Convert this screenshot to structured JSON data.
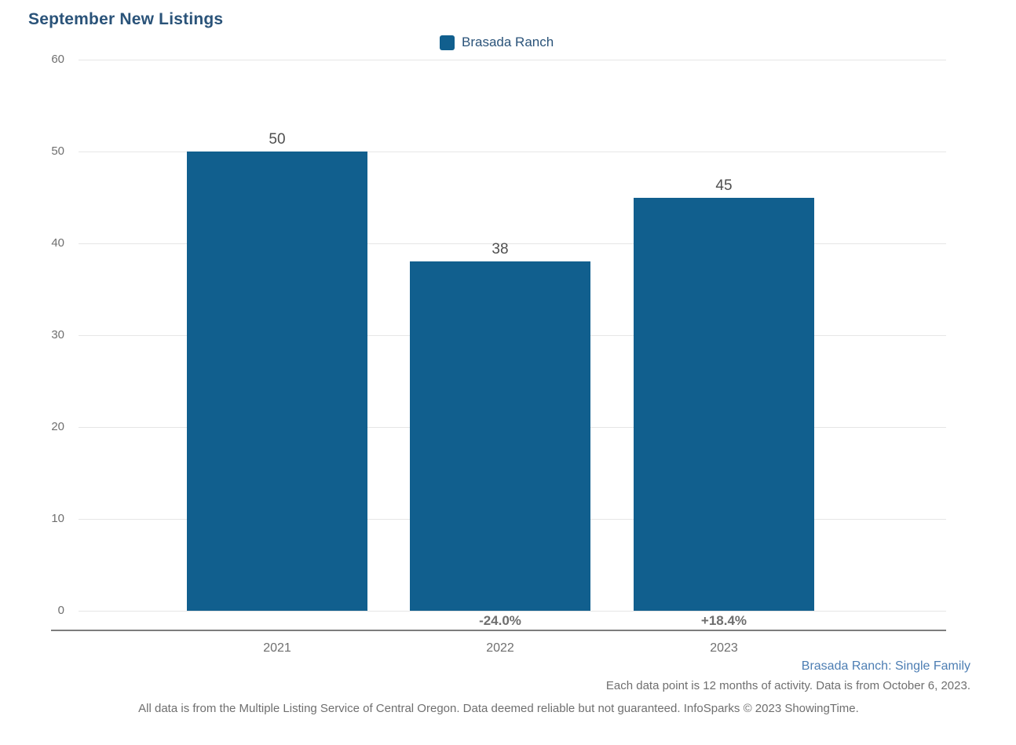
{
  "legend": {
    "label": "Brasada Ranch"
  },
  "footer": {
    "series_note": "Brasada Ranch: Single Family",
    "data_note": "Each data point is 12 months of activity. Data is from October 6, 2023.",
    "disclaimer": "All data is from the Multiple Listing Service of Central Oregon. Data deemed reliable but not guaranteed. InfoSparks © 2023 ShowingTime."
  },
  "colors": {
    "bar": "#115F8E",
    "title": "#2A5379",
    "legend_text": "#2A5379",
    "series_note_blue": "#4D7EB3",
    "axis_text_gray": "#6F6F6F",
    "value_label_gray": "#4F4F4F",
    "pct_label_gray": "#6E6E6E",
    "gridline_gray": "#E6E6E6",
    "axis_line_gray": "#7D7D7D"
  },
  "chart_data": {
    "type": "bar",
    "title": "September New Listings",
    "series_name": "Brasada Ranch",
    "categories": [
      "2021",
      "2022",
      "2023"
    ],
    "values": [
      50,
      38,
      45
    ],
    "pct_change_labels": [
      "",
      "-24.0%",
      "+18.4%"
    ],
    "xlabel": "",
    "ylabel": "",
    "ylim": [
      0,
      60
    ],
    "yticks": [
      0,
      10,
      20,
      30,
      40,
      50,
      60
    ],
    "grid": "horizontal",
    "legend_position": "top-center",
    "bar_color": "#115F8E"
  }
}
